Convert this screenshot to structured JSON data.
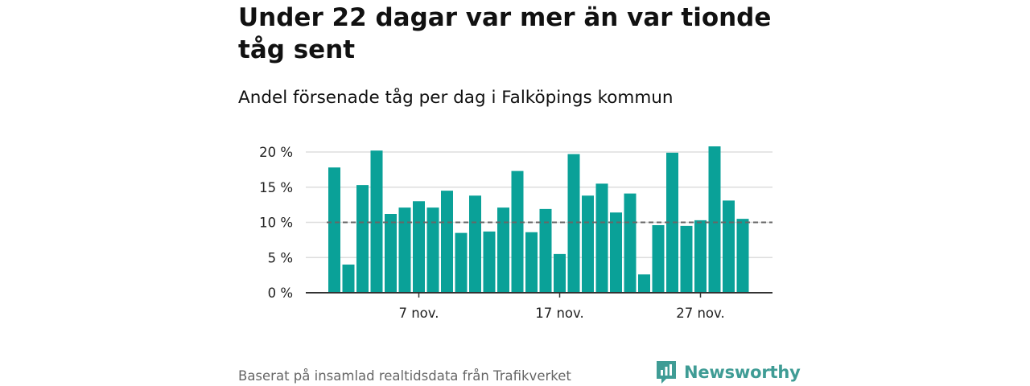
{
  "title": "Under 22 dagar var mer än var tionde tåg sent",
  "subtitle": "Andel försenade tåg per dag i Falköpings kommun",
  "source": "Baserat på insamlad realtidsdata från Trafikverket",
  "brand": {
    "name": "Newsworthy",
    "color": "#3f9c95",
    "icon": "newsworthy-logo-icon"
  },
  "colors": {
    "bar": "#0aa198",
    "reference": "#666666",
    "grid": "#dddddd",
    "axis": "#333333"
  },
  "chart_data": {
    "type": "bar",
    "categories": [
      "1 nov.",
      "2 nov.",
      "3 nov.",
      "4 nov.",
      "5 nov.",
      "6 nov.",
      "7 nov.",
      "8 nov.",
      "9 nov.",
      "10 nov.",
      "11 nov.",
      "12 nov.",
      "13 nov.",
      "14 nov.",
      "15 nov.",
      "16 nov.",
      "17 nov.",
      "18 nov.",
      "19 nov.",
      "20 nov.",
      "21 nov.",
      "22 nov.",
      "23 nov.",
      "24 nov.",
      "25 nov.",
      "26 nov.",
      "27 nov.",
      "28 nov.",
      "29 nov.",
      "30 nov."
    ],
    "values": [
      17.8,
      4.0,
      15.3,
      20.2,
      11.2,
      12.1,
      13.0,
      12.1,
      14.5,
      8.5,
      13.8,
      8.7,
      12.1,
      17.3,
      8.6,
      11.9,
      5.5,
      19.7,
      13.8,
      15.5,
      11.4,
      14.1,
      2.6,
      9.6,
      19.9,
      9.5,
      10.3,
      20.8,
      13.1,
      10.5
    ],
    "y_ticks": [
      0,
      5,
      10,
      15,
      20
    ],
    "y_tick_labels": [
      "0 %",
      "5 %",
      "10 %",
      "15 %",
      "20 %"
    ],
    "x_tick_labels": [
      {
        "index": 6,
        "label": "7 nov."
      },
      {
        "index": 16,
        "label": "17 nov."
      },
      {
        "index": 26,
        "label": "27 nov."
      }
    ],
    "ylim": [
      0,
      22
    ],
    "reference_line": 10,
    "grid": true,
    "xlabel": "",
    "ylabel": ""
  }
}
